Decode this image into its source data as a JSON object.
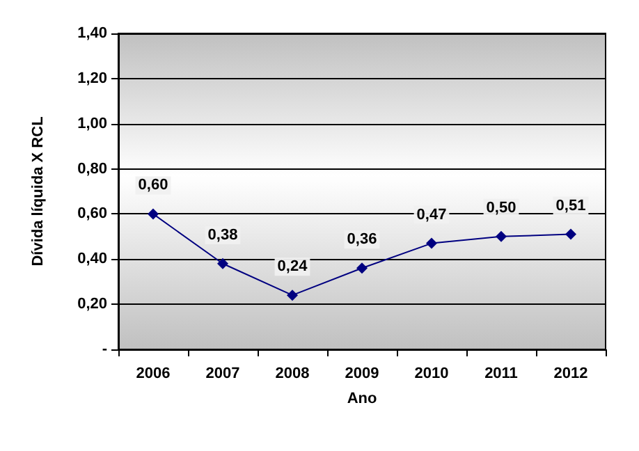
{
  "chart_data": {
    "type": "line",
    "xlabel": "Ano",
    "ylabel": "Dívida líquida X RCL",
    "categories": [
      "2006",
      "2007",
      "2008",
      "2009",
      "2010",
      "2011",
      "2012"
    ],
    "series": [
      {
        "color": "#000080",
        "values": [
          0.6,
          0.38,
          0.24,
          0.36,
          0.47,
          0.5,
          0.51
        ],
        "value_labels": [
          "0,60",
          "0,38",
          "0,24",
          "0,36",
          "0,47",
          "0,50",
          "0,51"
        ]
      }
    ],
    "ylim": [
      0,
      1.4
    ],
    "yticks": [
      {
        "value": 0,
        "label": "-"
      },
      {
        "value": 0.2,
        "label": "0,20"
      },
      {
        "value": 0.4,
        "label": "0,40"
      },
      {
        "value": 0.6,
        "label": "0,60"
      },
      {
        "value": 0.8,
        "label": "0,80"
      },
      {
        "value": 1.0,
        "label": "1,00"
      },
      {
        "value": 1.2,
        "label": "1,20"
      },
      {
        "value": 1.4,
        "label": "1,40"
      }
    ],
    "grid": "y",
    "marker": "diamond",
    "line_style": "solid"
  }
}
